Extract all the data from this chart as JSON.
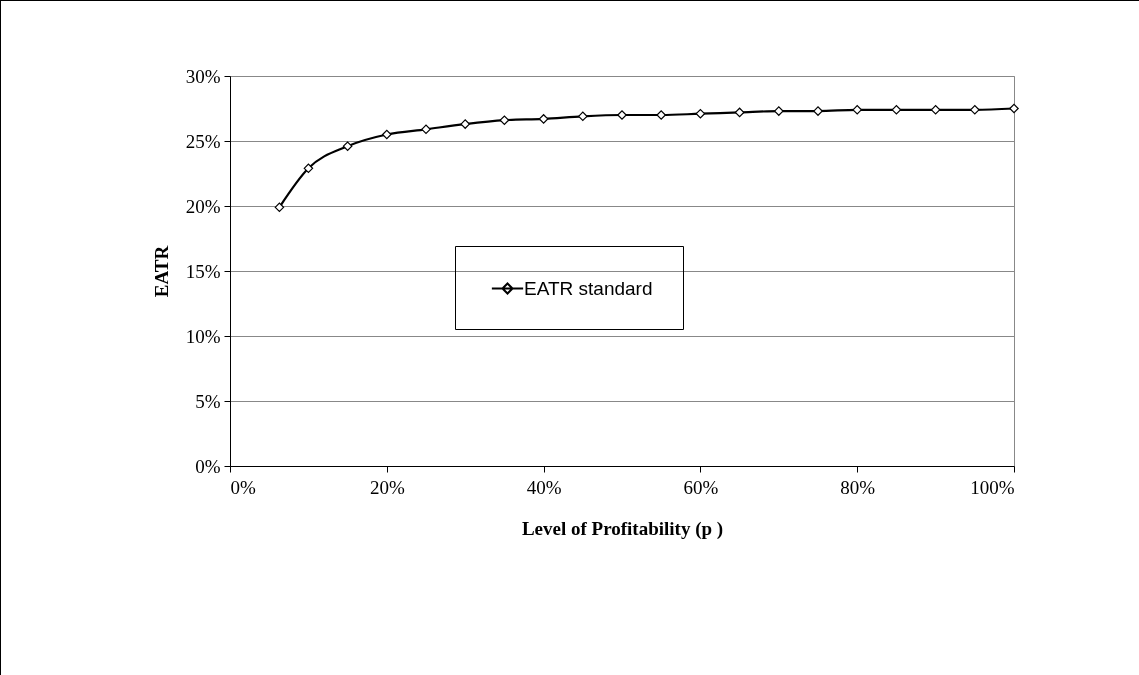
{
  "chart_data": {
    "type": "line",
    "xlabel": "Level of Profitability (p )",
    "ylabel": "EATR",
    "x": [
      6.3,
      10,
      15,
      20,
      25,
      30,
      35,
      40,
      45,
      50,
      55,
      60,
      65,
      70,
      75,
      80,
      85,
      90,
      95,
      100
    ],
    "series": [
      {
        "name": "EATR standard",
        "color": "#000000",
        "values": [
          19.9,
          22.9,
          24.6,
          25.5,
          25.9,
          26.3,
          26.6,
          26.7,
          26.9,
          27.0,
          27.0,
          27.1,
          27.2,
          27.3,
          27.3,
          27.4,
          27.4,
          27.4,
          27.4,
          27.5
        ]
      }
    ],
    "xlim": [
      0,
      100
    ],
    "xticks": [
      {
        "value": 0,
        "label": "0%"
      },
      {
        "value": 20,
        "label": "20%"
      },
      {
        "value": 40,
        "label": "40%"
      },
      {
        "value": 60,
        "label": "60%"
      },
      {
        "value": 80,
        "label": "80%"
      },
      {
        "value": 100,
        "label": "100%"
      }
    ],
    "ylim": [
      0,
      30
    ],
    "yticks": [
      {
        "value": 0,
        "label": "0%"
      },
      {
        "value": 5,
        "label": "5%"
      },
      {
        "value": 10,
        "label": "10%"
      },
      {
        "value": 15,
        "label": "15%"
      },
      {
        "value": 20,
        "label": "20%"
      },
      {
        "value": 25,
        "label": "25%"
      },
      {
        "value": 30,
        "label": "30%"
      }
    ],
    "grid": "y",
    "legend": "center",
    "marker": "diamond",
    "line_style": "solid"
  }
}
